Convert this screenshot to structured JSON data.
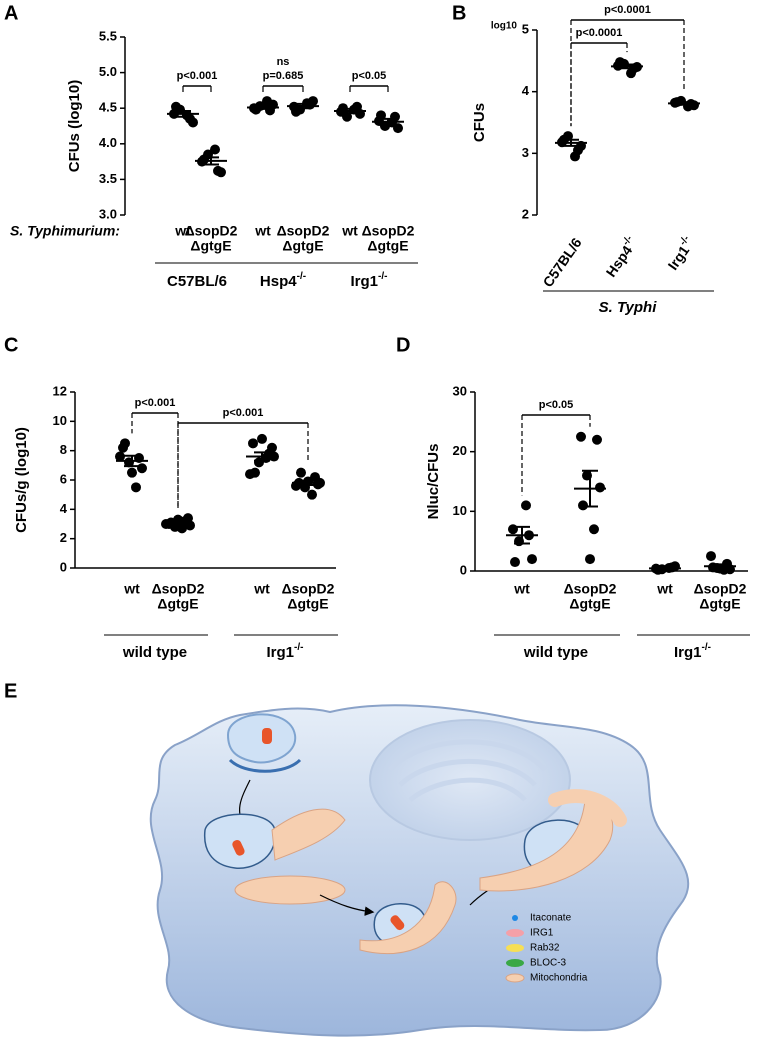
{
  "chart_data": [
    {
      "type": "dotplot",
      "panel": "A",
      "ylabel": "CFUs (log10)",
      "xlabel": "S. Typhimurium:",
      "ylim": [
        3.0,
        5.5
      ],
      "yticks": [
        {
          "value": 3,
          "label": "3.0"
        },
        3.5,
        {
          "value": 4,
          "label": "4.0"
        },
        4.5,
        {
          "value": 5,
          "label": "5.0"
        },
        5.5
      ],
      "categories": [
        [
          "wt"
        ],
        [
          "ΔsopD2",
          "ΔgtgE"
        ],
        [
          "wt"
        ],
        [
          "ΔsopD2",
          "ΔgtgE"
        ],
        [
          "wt"
        ],
        [
          "ΔsopD2",
          "ΔgtgE"
        ]
      ],
      "groups": [
        {
          "text": "C57BL/6"
        },
        {
          "text": "Hsp4",
          "sup": "-/-"
        },
        {
          "text": "Irg1",
          "sup": "-/-"
        }
      ],
      "comparisons": [
        [
          "p<0.001"
        ],
        [
          "ns",
          "p=0.685"
        ],
        [
          "p<0.05"
        ]
      ],
      "color": "#000000",
      "points": [
        [
          4.42,
          4.35,
          4.48,
          4.3,
          4.52,
          4.4
        ],
        [
          3.75,
          3.62,
          3.85,
          3.6,
          3.78,
          3.92
        ],
        [
          4.5,
          4.47,
          4.53,
          4.55,
          4.48,
          4.6
        ],
        [
          4.52,
          4.55,
          4.48,
          4.6,
          4.45,
          4.57
        ],
        [
          4.45,
          4.52,
          4.38,
          4.42,
          4.5,
          4.48
        ],
        [
          4.32,
          4.38,
          4.25,
          4.22,
          4.4,
          4.3
        ]
      ],
      "mean": [
        4.42,
        3.76,
        4.51,
        4.53,
        4.46,
        4.31
      ],
      "sem": [
        0.04,
        0.05,
        0.02,
        0.03,
        0.03,
        0.04
      ]
    },
    {
      "type": "dotplot",
      "panel": "B",
      "ylabel": "CFUs",
      "yunit": "log10",
      "ylim": [
        2,
        5
      ],
      "yticks": [
        2,
        3,
        4,
        5
      ],
      "categories": [
        {
          "text": "C57BL/6"
        },
        {
          "text": "Hsp4",
          "sup": "-/-"
        },
        {
          "text": "Irg1",
          "sup": "-/-"
        }
      ],
      "groups": [
        {
          "text": "S. Typhi"
        }
      ],
      "comparisons": [
        [
          "p<0.0001"
        ],
        [
          "p<0.0001"
        ]
      ],
      "color": "#000000",
      "points": [
        [
          3.18,
          3.05,
          3.28,
          3.12,
          3.22,
          2.95
        ],
        [
          4.42,
          4.38,
          4.45,
          4.4,
          4.48,
          4.3
        ],
        [
          3.82,
          3.8,
          3.85,
          3.78,
          3.83,
          3.76
        ]
      ],
      "mean": [
        3.17,
        4.41,
        3.81
      ],
      "sem": [
        0.05,
        0.03,
        0.02
      ]
    },
    {
      "type": "dotplot",
      "panel": "C",
      "ylabel": "CFUs/g (log10)",
      "ylim": [
        0,
        12
      ],
      "yticks": [
        0,
        2,
        4,
        6,
        8,
        10,
        12
      ],
      "categories": [
        [
          "wt"
        ],
        [
          "ΔsopD2",
          "ΔgtgE"
        ],
        [
          "wt"
        ],
        [
          "ΔsopD2",
          "ΔgtgE"
        ]
      ],
      "groups": [
        {
          "text": "wild type"
        },
        {
          "text": "Irg1",
          "sup": "-/-"
        }
      ],
      "comparisons": [
        [
          "p<0.001"
        ],
        [
          "p<0.001"
        ]
      ],
      "color": "#000000",
      "points": [
        [
          8.2,
          7.5,
          7.2,
          6.8,
          8.5,
          5.5,
          6.5,
          7.6
        ],
        [
          3.0,
          3.2,
          2.8,
          3.4,
          3.1,
          2.7,
          3.3,
          3.0,
          2.9
        ],
        [
          8.5,
          7.8,
          7.2,
          8.2,
          6.5,
          7.5,
          8.8,
          6.4,
          7.6
        ],
        [
          5.8,
          6.2,
          5.5,
          5.7,
          6.5,
          5.0,
          5.9,
          5.6,
          5.8
        ]
      ],
      "mean": [
        7.3,
        3.05,
        7.6,
        5.8
      ],
      "sem": [
        0.35,
        0.07,
        0.28,
        0.14
      ]
    },
    {
      "type": "dotplot",
      "panel": "D",
      "ylabel": "Nluc/CFUs",
      "ylim": [
        0,
        30
      ],
      "yticks": [
        0,
        10,
        20,
        30
      ],
      "categories": [
        [
          "wt"
        ],
        [
          "ΔsopD2",
          "ΔgtgE"
        ],
        [
          "wt"
        ],
        [
          "ΔsopD2",
          "ΔgtgE"
        ]
      ],
      "groups": [
        {
          "text": "wild type"
        },
        {
          "text": "Irg1",
          "sup": "-/-"
        }
      ],
      "comparisons": [
        [
          "p<0.05"
        ]
      ],
      "color": "#000000",
      "points": [
        [
          7,
          6,
          5,
          2,
          1.5,
          11
        ],
        [
          22.5,
          22,
          16,
          14,
          11,
          7,
          2
        ],
        [
          0.4,
          0.6,
          0.3,
          0.8,
          0.2,
          0.5
        ],
        [
          2.5,
          1.2,
          0.5,
          0.3,
          0.6,
          0.2,
          0.4
        ]
      ],
      "mean": [
        6,
        13.8,
        0.45,
        0.8
      ],
      "sem": [
        1.4,
        3,
        0.1,
        0.3
      ]
    }
  ],
  "diagram": {
    "panel": "E",
    "legend": [
      {
        "label": "Itaconate",
        "color": "#1e88e5"
      },
      {
        "label": "IRG1",
        "color": "#f4a0a8"
      },
      {
        "label": "Rab32",
        "color": "#f7df55"
      },
      {
        "label": "BLOC-3",
        "color": "#3aa845"
      },
      {
        "label": "Mitochondria",
        "color": "#f6cfb0"
      }
    ]
  }
}
